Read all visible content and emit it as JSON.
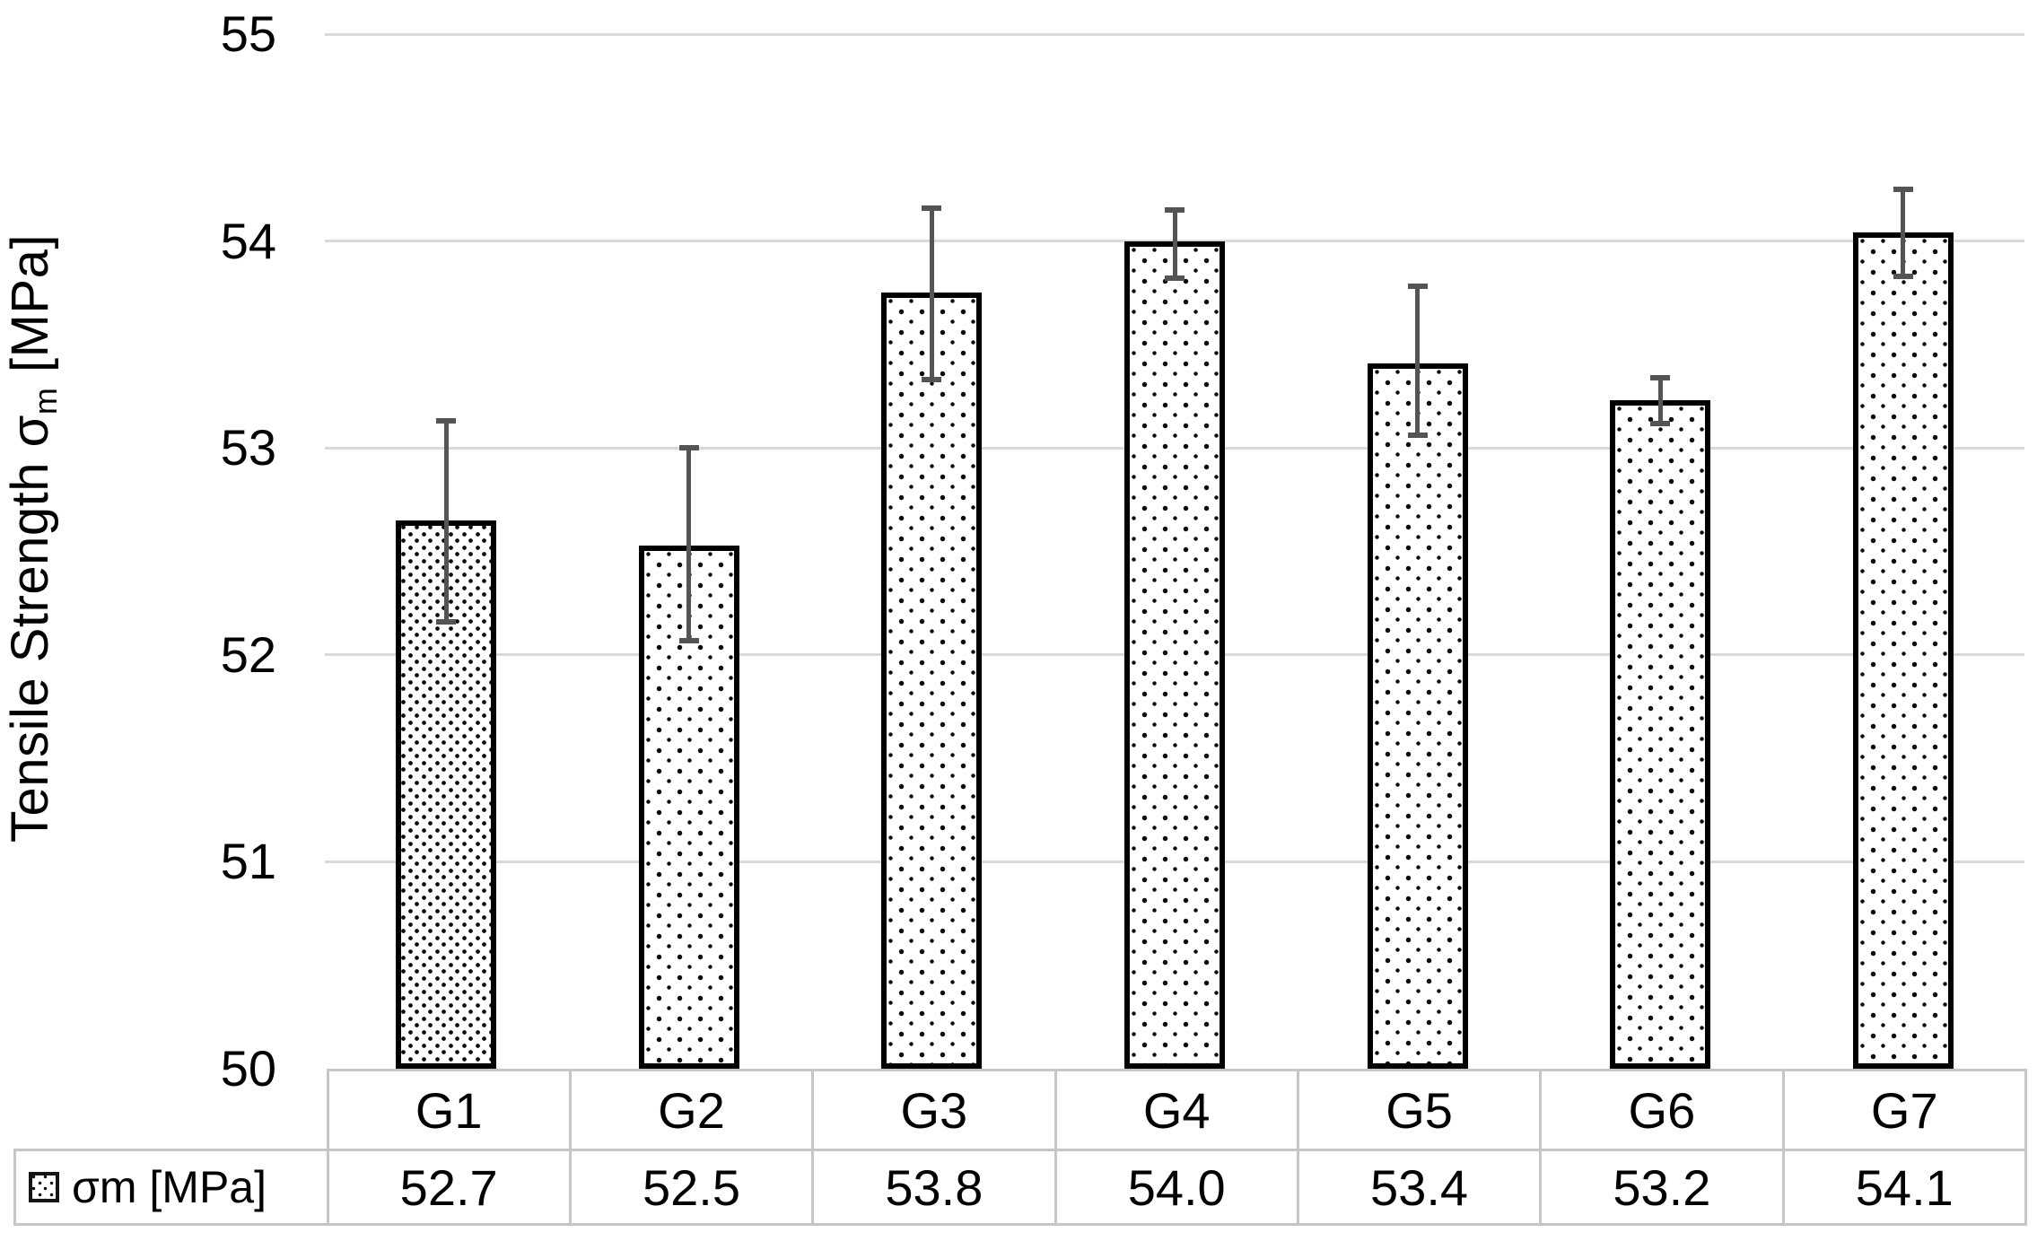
{
  "chart_data": {
    "type": "bar",
    "title": "",
    "categories": [
      "G1",
      "G2",
      "G3",
      "G4",
      "G5",
      "G6",
      "G7"
    ],
    "series": [
      {
        "name": "σm [MPa]",
        "values": [
          52.7,
          52.5,
          53.8,
          54.0,
          53.4,
          53.2,
          54.1
        ],
        "value_labels": [
          "52.7",
          "52.5",
          "53.8",
          "54.0",
          "53.4",
          "53.2",
          "54.1"
        ],
        "bar_tops_precise": [
          52.65,
          52.53,
          53.75,
          54.0,
          53.41,
          53.23,
          54.04
        ],
        "error_high": [
          53.13,
          53.0,
          54.16,
          54.15,
          53.78,
          53.34,
          54.25
        ],
        "error_low": [
          52.16,
          52.07,
          53.33,
          53.82,
          53.06,
          53.12,
          53.83
        ],
        "fill_patterns": [
          "dense-dots",
          "sparse-dots",
          "sparse-dots",
          "sparse-dots",
          "sparse-dots",
          "sparse-dots",
          "sparse-dots"
        ]
      }
    ],
    "ylabel": "Tensile Strength σm [MPa]",
    "ylabel_parts": {
      "main": "Tensile Strength σ",
      "subscript": "m",
      "unit": " [MPa]"
    },
    "xlabel": "",
    "ylim": [
      50,
      55
    ],
    "yticks": [
      "50",
      "51",
      "52",
      "53",
      "54",
      "55"
    ],
    "grid": true,
    "legend_label": "σm [MPa]",
    "legend_position": "bottom-table-left",
    "colors": {
      "bar_fill": "#ffffff",
      "bar_dots": "#0a0a0a",
      "bar_border": "#000000",
      "error_bar": "#545454",
      "gridline": "#d9d9d9",
      "table_border": "#c6c6c6",
      "text": "#000000",
      "background": "#ffffff"
    }
  }
}
